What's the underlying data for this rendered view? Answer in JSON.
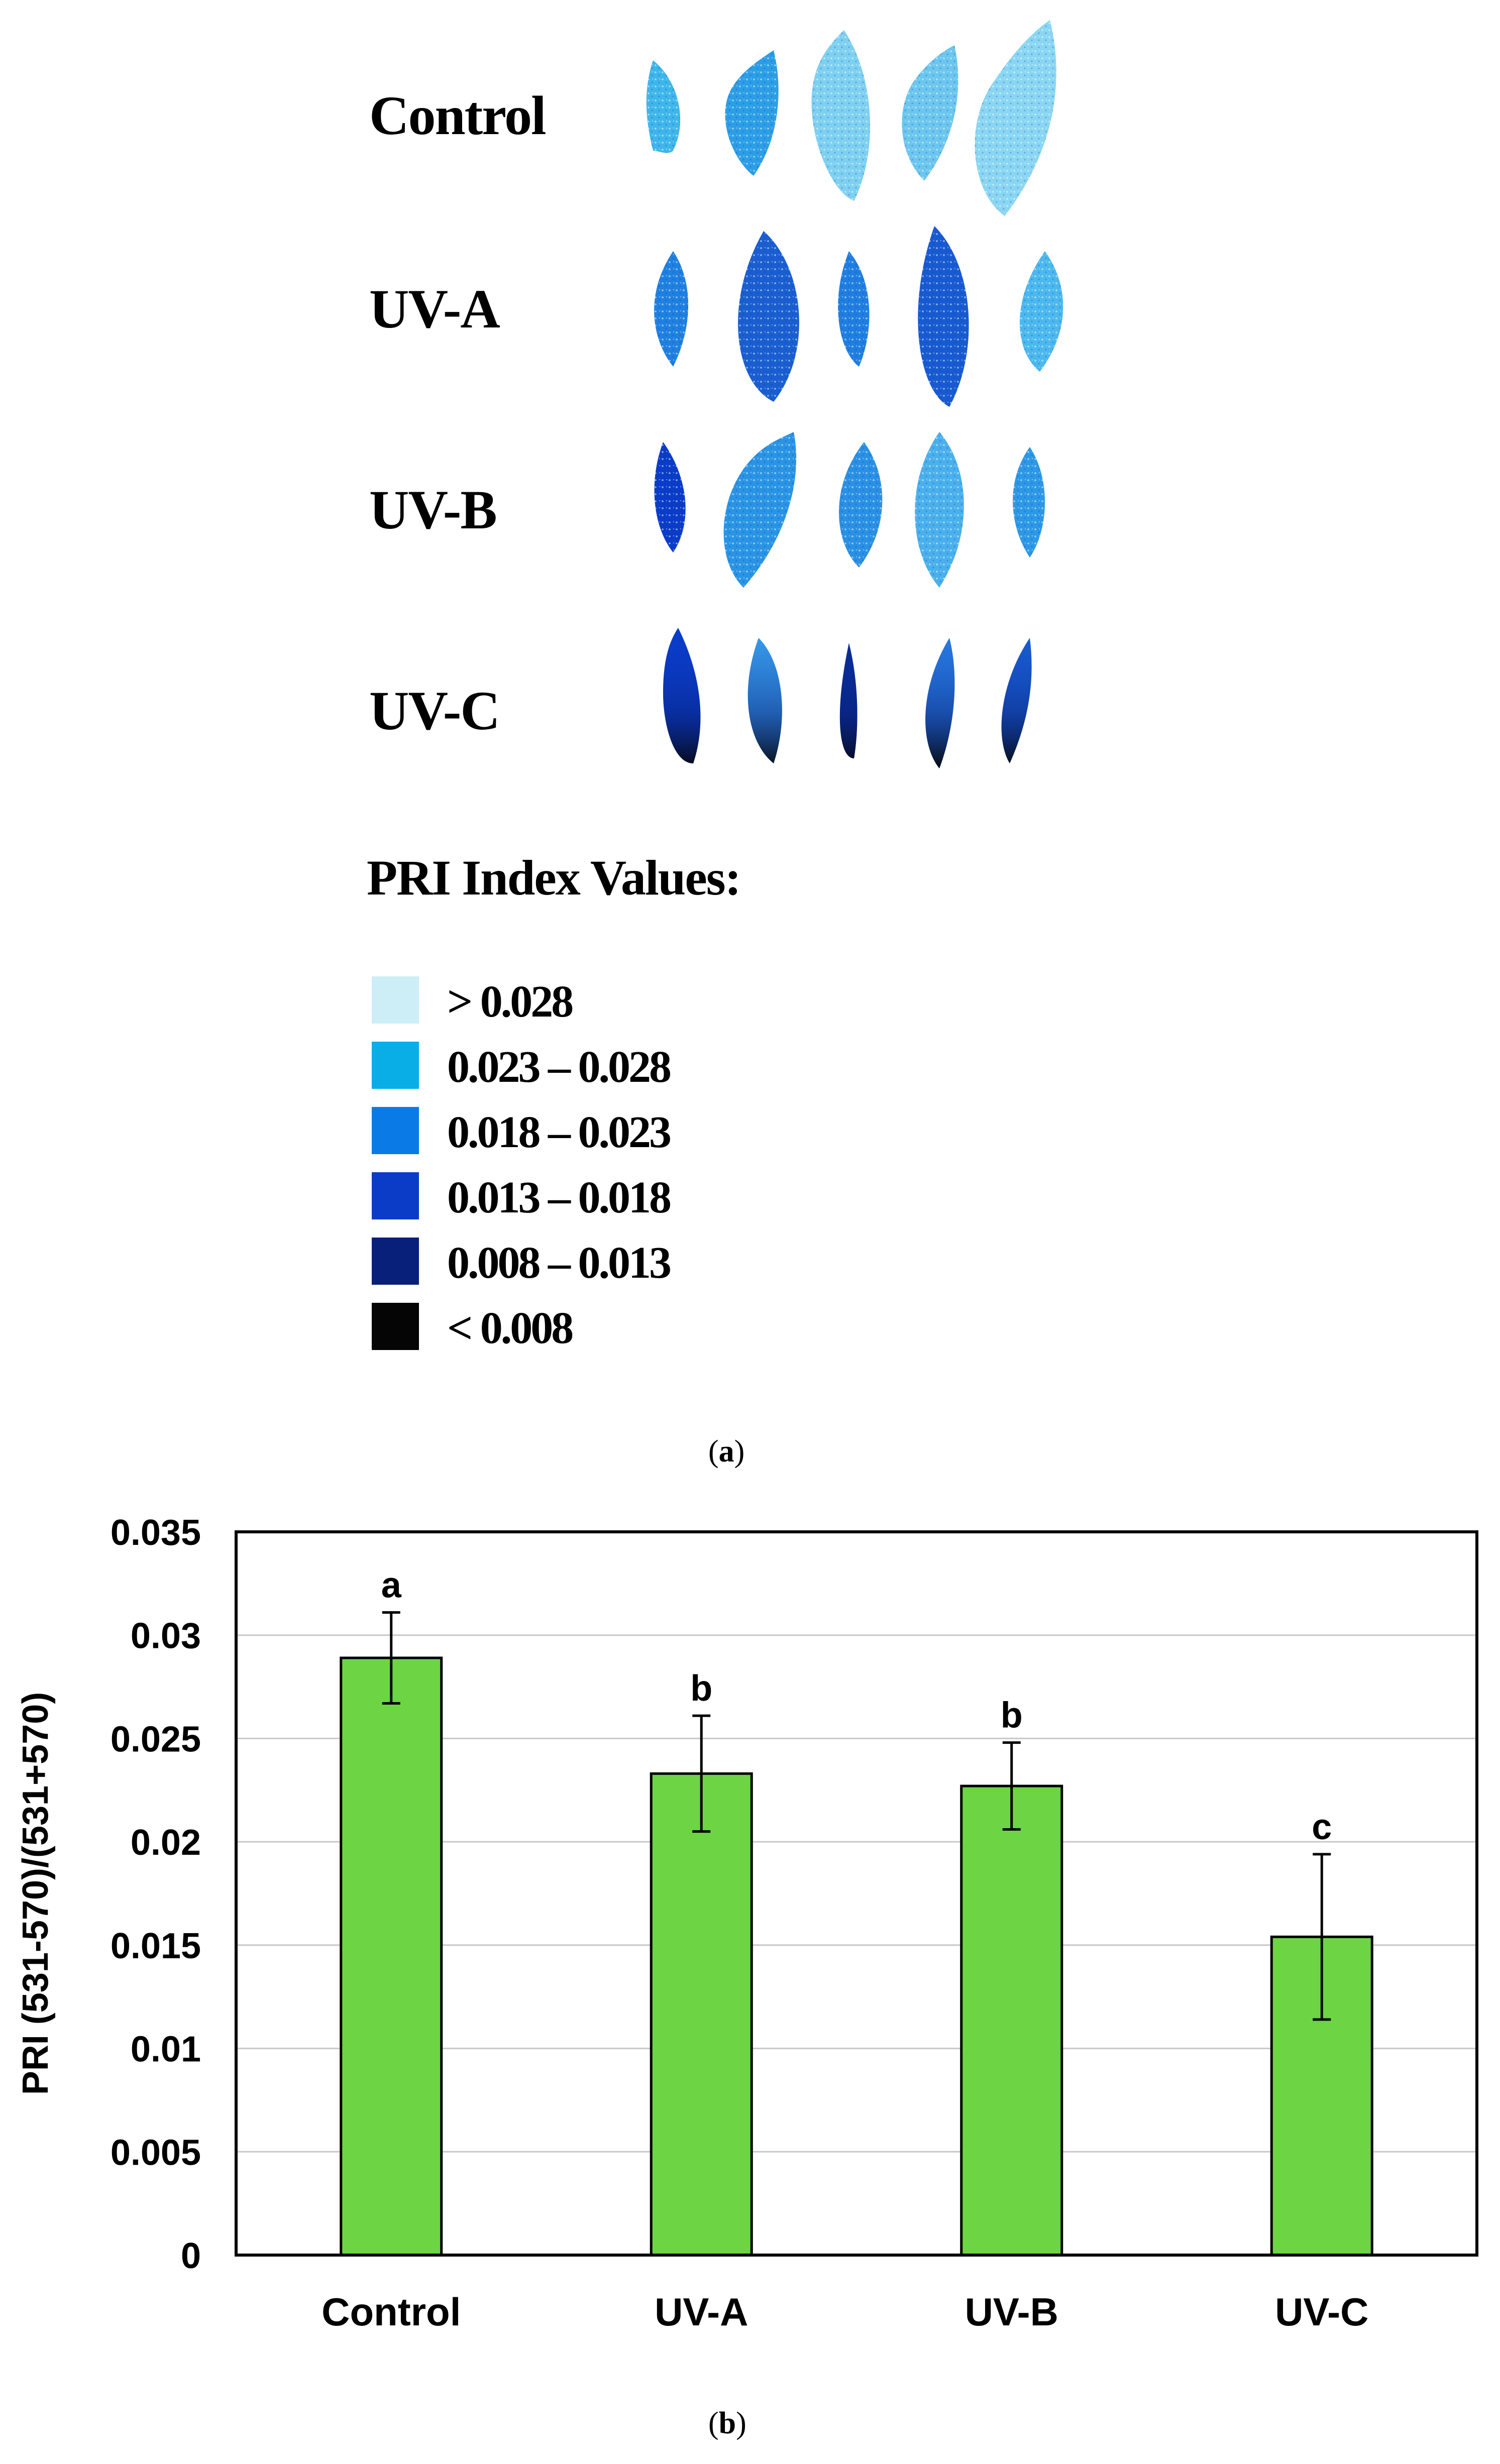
{
  "panel_a": {
    "caption_letter": "a",
    "rows": [
      {
        "label": "Control"
      },
      {
        "label": "UV-A"
      },
      {
        "label": "UV-B"
      },
      {
        "label": "UV-C"
      }
    ],
    "legend": {
      "title": "PRI Index Values:",
      "items": [
        {
          "label": "> 0.028",
          "color": "#cdeef6"
        },
        {
          "label": "0.023 – 0.028",
          "color": "#0aaee6"
        },
        {
          "label": "0.018 – 0.023",
          "color": "#0a7be6"
        },
        {
          "label": "0.013 – 0.018",
          "color": "#0a3cc8"
        },
        {
          "label": "0.008 – 0.013",
          "color": "#08207a"
        },
        {
          "label": "< 0.008",
          "color": "#050505"
        }
      ]
    }
  },
  "panel_b": {
    "caption_letter": "b"
  },
  "chart_data": {
    "type": "bar",
    "title": "",
    "xlabel": "",
    "ylabel": "PRI (531-570)/(531+570)",
    "categories": [
      "Control",
      "UV-A",
      "UV-B",
      "UV-C"
    ],
    "values": [
      0.0289,
      0.0233,
      0.0227,
      0.0154
    ],
    "errors": [
      0.0022,
      0.0028,
      0.0021,
      0.004
    ],
    "significance_letters": [
      "a",
      "b",
      "b",
      "c"
    ],
    "ylim": [
      0,
      0.035
    ],
    "yticks": [
      "0",
      "0.005",
      "0.01",
      "0.015",
      "0.02",
      "0.025",
      "0.03",
      "0.035"
    ],
    "ytick_values": [
      0,
      0.005,
      0.01,
      0.015,
      0.02,
      0.025,
      0.03,
      0.035
    ],
    "grid": true,
    "bar_color": "#6dd444"
  }
}
